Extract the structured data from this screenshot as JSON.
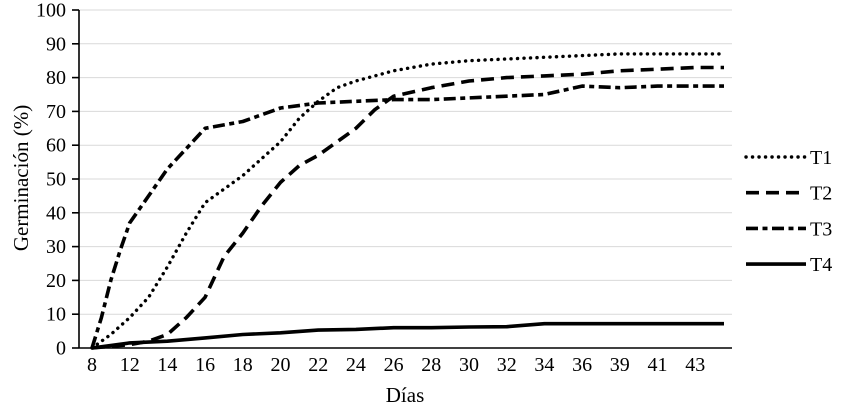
{
  "chart_data": {
    "type": "line",
    "title": "",
    "xlabel": "Días",
    "ylabel": "Germinación (%)",
    "x_tick_labels": [
      8,
      12,
      14,
      16,
      18,
      20,
      22,
      24,
      26,
      28,
      30,
      32,
      34,
      36,
      39,
      41,
      43
    ],
    "y_ticks": [
      0,
      10,
      20,
      30,
      40,
      50,
      60,
      70,
      80,
      90,
      100
    ],
    "ylim": [
      0,
      100
    ],
    "grid": "horizontal-only",
    "legend_position": "right-center",
    "series": [
      {
        "name": "T1",
        "line_style": "dotted",
        "color": "#000000",
        "points": [
          [
            8,
            0
          ],
          [
            10,
            4
          ],
          [
            12,
            9
          ],
          [
            13,
            15
          ],
          [
            14,
            24
          ],
          [
            15,
            34
          ],
          [
            16,
            43
          ],
          [
            17,
            47
          ],
          [
            18,
            51
          ],
          [
            19,
            56
          ],
          [
            20,
            61
          ],
          [
            21,
            68
          ],
          [
            22,
            73
          ],
          [
            23,
            77
          ],
          [
            24,
            79
          ],
          [
            26,
            82
          ],
          [
            28,
            84
          ],
          [
            30,
            85
          ],
          [
            32,
            85.5
          ],
          [
            34,
            86
          ],
          [
            36,
            86.5
          ],
          [
            39,
            87
          ],
          [
            41,
            87
          ],
          [
            43,
            87
          ]
        ]
      },
      {
        "name": "T2",
        "line_style": "dashed",
        "color": "#000000",
        "points": [
          [
            8,
            0
          ],
          [
            12,
            1
          ],
          [
            13,
            2
          ],
          [
            14,
            4
          ],
          [
            15,
            9
          ],
          [
            16,
            15
          ],
          [
            17,
            27
          ],
          [
            18,
            34
          ],
          [
            19,
            42
          ],
          [
            20,
            49
          ],
          [
            21,
            54
          ],
          [
            22,
            57
          ],
          [
            23,
            61
          ],
          [
            24,
            65
          ],
          [
            25,
            70.5
          ],
          [
            26,
            74.5
          ],
          [
            28,
            77
          ],
          [
            30,
            79
          ],
          [
            32,
            80
          ],
          [
            34,
            80.5
          ],
          [
            36,
            81
          ],
          [
            39,
            82
          ],
          [
            41,
            82.5
          ],
          [
            43,
            83
          ]
        ]
      },
      {
        "name": "T3",
        "line_style": "dash-dot",
        "color": "#000000",
        "points": [
          [
            8,
            0
          ],
          [
            9,
            9
          ],
          [
            10,
            20
          ],
          [
            11,
            29
          ],
          [
            12,
            37
          ],
          [
            13,
            45
          ],
          [
            14,
            53
          ],
          [
            15,
            59
          ],
          [
            16,
            65
          ],
          [
            17,
            66
          ],
          [
            18,
            67
          ],
          [
            19,
            69
          ],
          [
            20,
            71
          ],
          [
            22,
            72.5
          ],
          [
            24,
            73
          ],
          [
            26,
            73.5
          ],
          [
            28,
            73.5
          ],
          [
            30,
            74
          ],
          [
            32,
            74.5
          ],
          [
            34,
            75
          ],
          [
            36,
            77.5
          ],
          [
            39,
            77
          ],
          [
            41,
            77.5
          ],
          [
            43,
            77.5
          ]
        ]
      },
      {
        "name": "T4",
        "line_style": "solid",
        "color": "#000000",
        "points": [
          [
            8,
            0
          ],
          [
            12,
            1.5
          ],
          [
            14,
            2
          ],
          [
            16,
            3
          ],
          [
            18,
            4
          ],
          [
            20,
            4.5
          ],
          [
            22,
            5.3
          ],
          [
            24,
            5.5
          ],
          [
            26,
            6
          ],
          [
            28,
            6
          ],
          [
            30,
            6.2
          ],
          [
            32,
            6.3
          ],
          [
            34,
            7.2
          ],
          [
            36,
            7.2
          ],
          [
            39,
            7.2
          ],
          [
            41,
            7.2
          ],
          [
            43,
            7.2
          ]
        ]
      }
    ],
    "colors": {
      "series": "#000000",
      "grid": "#d9d9d9",
      "axis": "#000000",
      "background": "#ffffff",
      "text": "#000000"
    }
  },
  "legend": {
    "items": [
      {
        "label": "T1",
        "style": "dotted"
      },
      {
        "label": "T2",
        "style": "dashed"
      },
      {
        "label": "T3",
        "style": "dash-dot"
      },
      {
        "label": "T4",
        "style": "solid"
      }
    ]
  }
}
